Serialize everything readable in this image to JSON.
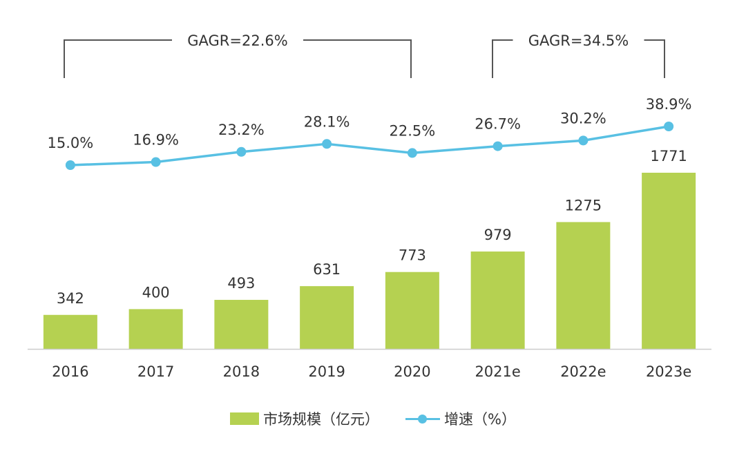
{
  "chart_data": {
    "type": "bar",
    "categories": [
      "2016",
      "2017",
      "2018",
      "2019",
      "2020",
      "2021e",
      "2022e",
      "2023e"
    ],
    "series": [
      {
        "name": "市场规模（亿元）",
        "type": "bar",
        "values": [
          342,
          400,
          493,
          631,
          773,
          979,
          1275,
          1771
        ],
        "labels": [
          "342",
          "400",
          "493",
          "631",
          "773",
          "979",
          "1275",
          "1771"
        ]
      },
      {
        "name": "增速（%）",
        "type": "line",
        "values": [
          15.0,
          16.9,
          23.2,
          28.1,
          22.5,
          26.7,
          30.2,
          38.9
        ],
        "labels": [
          "15.0%",
          "16.9%",
          "23.2%",
          "28.1%",
          "22.5%",
          "26.7%",
          "30.2%",
          "38.9%"
        ]
      }
    ],
    "annotations": [
      {
        "text": "GAGR=22.6%",
        "from": "2016",
        "to": "2020"
      },
      {
        "text": "GAGR=34.5%",
        "from": "2021e",
        "to": "2023e"
      }
    ],
    "legend_position": "bottom",
    "grid": false
  },
  "colors": {
    "bar": "#b5d151",
    "line": "#58c0e3",
    "text": "#333333",
    "bracket": "#555555",
    "axis": "#cccccc"
  }
}
